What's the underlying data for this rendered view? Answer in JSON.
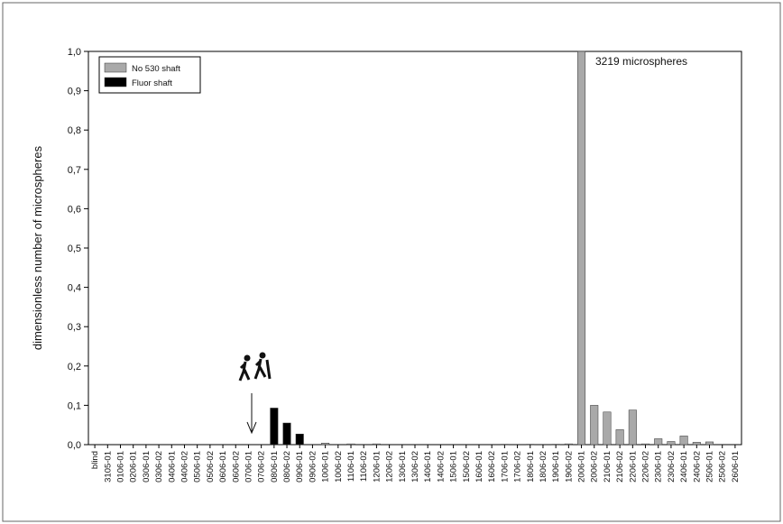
{
  "chart_data": {
    "type": "bar",
    "y_label": "dimensionless number of microspheres",
    "annotation": "3219 microspheres",
    "categories": [
      "blind",
      "3105-01",
      "0106-01",
      "0206-01",
      "0306-01",
      "0306-02",
      "0406-01",
      "0406-02",
      "0506-01",
      "0506-02",
      "0606-01",
      "0606-02",
      "0706-01",
      "0706-02",
      "0806-01",
      "0806-02",
      "0906-01",
      "0906-02",
      "1006-01",
      "1006-02",
      "1106-01",
      "1106-02",
      "1206-01",
      "1206-02",
      "1306-01",
      "1306-02",
      "1406-01",
      "1406-02",
      "1506-01",
      "1506-02",
      "1606-01",
      "1606-02",
      "1706-01",
      "1706-02",
      "1806-01",
      "1806-02",
      "1906-01",
      "1906-02",
      "2006-01",
      "2006-02",
      "2106-01",
      "2106-02",
      "2206-01",
      "2206-02",
      "2306-01",
      "2306-02",
      "2406-01",
      "2406-02",
      "2506-01",
      "2506-02",
      "2606-01"
    ],
    "series": [
      {
        "name": "No 530 shaft",
        "color": "#a9a9a9",
        "values": [
          null,
          null,
          null,
          null,
          null,
          null,
          null,
          null,
          null,
          null,
          null,
          null,
          null,
          null,
          null,
          null,
          null,
          null,
          0.004,
          null,
          0.002,
          null,
          0.002,
          null,
          null,
          null,
          null,
          null,
          null,
          null,
          null,
          null,
          0.001,
          null,
          0.001,
          null,
          0.001,
          0.002,
          1.0,
          0.1,
          0.083,
          0.038,
          0.088,
          0.002,
          0.015,
          0.008,
          0.022,
          0.006,
          0.007,
          null,
          null
        ]
      },
      {
        "name": "Fluor shaft",
        "color": "#000000",
        "values": [
          null,
          null,
          null,
          null,
          null,
          null,
          null,
          null,
          null,
          null,
          null,
          null,
          null,
          null,
          0.093,
          0.055,
          0.027,
          null,
          null,
          null,
          null,
          null,
          null,
          null,
          null,
          null,
          null,
          null,
          null,
          null,
          null,
          null,
          null,
          null,
          null,
          null,
          null,
          null,
          null,
          null,
          null,
          null,
          null,
          null,
          null,
          null,
          null,
          null,
          null,
          null,
          null
        ]
      }
    ],
    "ylim": [
      0,
      1
    ],
    "yticks": [
      {
        "value": 0,
        "label": "0,0"
      },
      {
        "value": 0.1,
        "label": "0,1"
      },
      {
        "value": 0.2,
        "label": "0,2"
      },
      {
        "value": 0.3,
        "label": "0,3"
      },
      {
        "value": 0.4,
        "label": "0,4"
      },
      {
        "value": 0.5,
        "label": "0,5"
      },
      {
        "value": 0.6,
        "label": "0,6"
      },
      {
        "value": 0.7,
        "label": "0,7"
      },
      {
        "value": 0.8,
        "label": "0,8"
      },
      {
        "value": 0.9,
        "label": "0,9"
      },
      {
        "value": 1,
        "label": "1,0"
      }
    ],
    "grid": false,
    "legend": "top-left"
  }
}
